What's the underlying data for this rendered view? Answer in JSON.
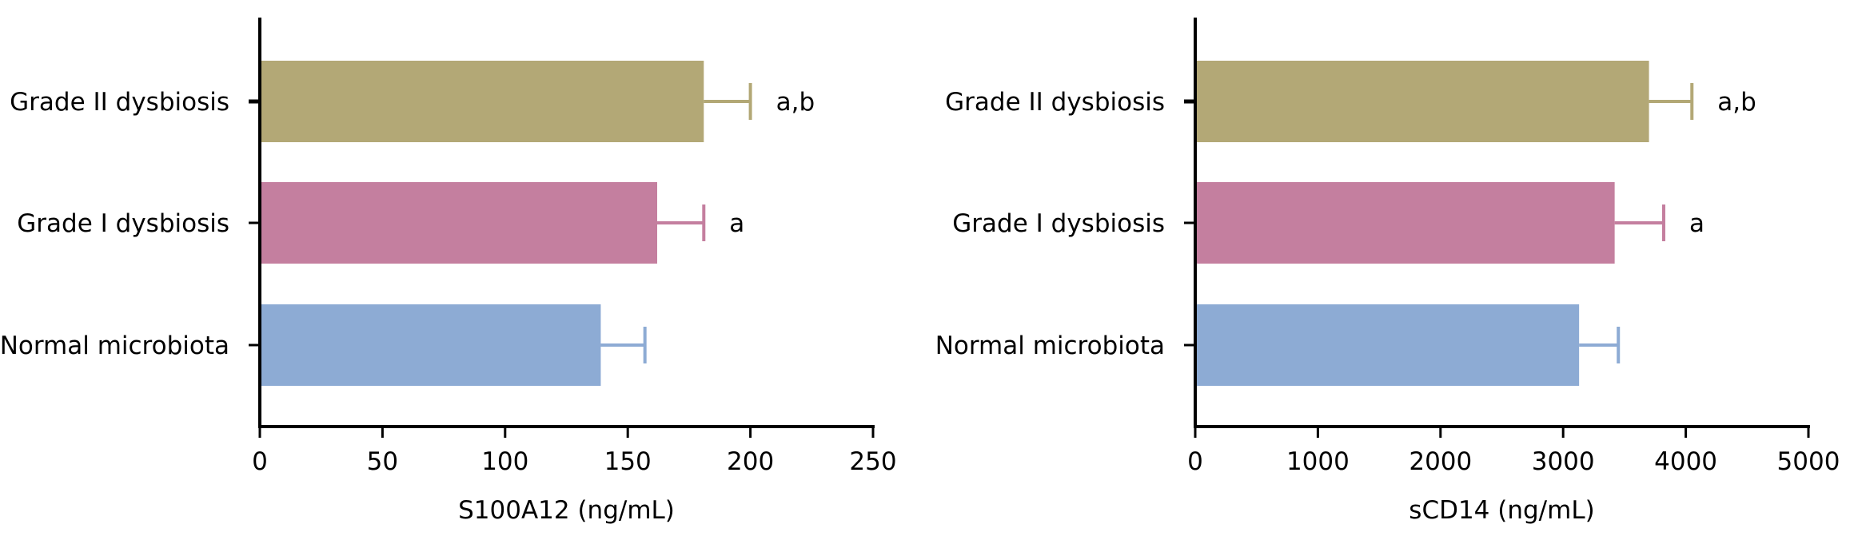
{
  "chart_data": [
    {
      "type": "bar",
      "orientation": "horizontal",
      "categories": [
        "Grade II dysbiosis",
        "Grade I dysbiosis",
        "Normal microbiota"
      ],
      "values": [
        181,
        162,
        139
      ],
      "errors": [
        19,
        19,
        18
      ],
      "annotations": [
        "a,b",
        "a",
        ""
      ],
      "colors": [
        "#b3a876",
        "#c47f9f",
        "#8dabd4"
      ],
      "xlabel": "S100A12 (ng/mL)",
      "xlim": [
        0,
        250
      ],
      "xticks": [
        0,
        50,
        100,
        150,
        200,
        250
      ],
      "grid": false
    },
    {
      "type": "bar",
      "orientation": "horizontal",
      "categories": [
        "Grade II dysbiosis",
        "Grade I dysbiosis",
        "Normal microbiota"
      ],
      "values": [
        3700,
        3420,
        3130
      ],
      "errors": [
        350,
        400,
        320
      ],
      "annotations": [
        "a,b",
        "a",
        ""
      ],
      "colors": [
        "#b3a876",
        "#c47f9f",
        "#8dabd4"
      ],
      "xlabel": "sCD14 (ng/mL)",
      "xlim": [
        0,
        5000
      ],
      "xticks": [
        0,
        1000,
        2000,
        3000,
        4000,
        5000
      ],
      "grid": false
    }
  ]
}
